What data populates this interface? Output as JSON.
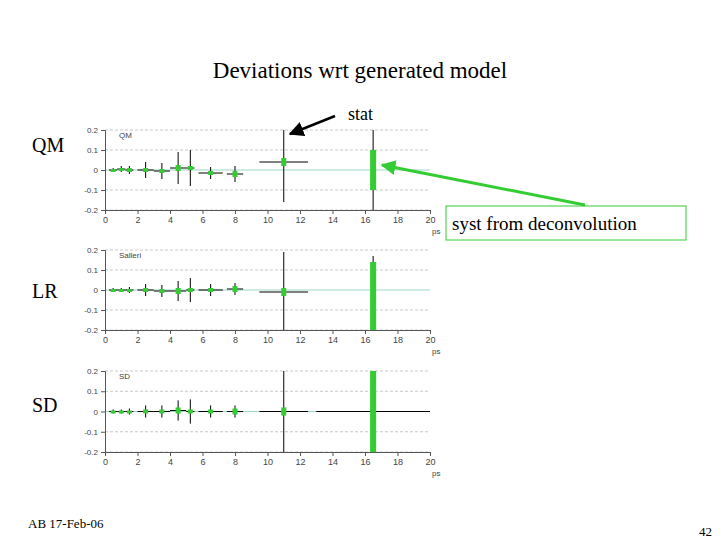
{
  "title": "Deviations wrt generated model",
  "annotations": {
    "stat": "stat",
    "syst": "syst from deconvolution"
  },
  "footer": {
    "left": "AB 17-Feb-06",
    "page": "42"
  },
  "chart_data": [
    {
      "type": "errorbar",
      "label": "QM",
      "title": "QM",
      "x_label": "ps",
      "grid": true,
      "xlim": [
        0,
        20
      ],
      "ylim": [
        -0.2,
        0.2
      ],
      "xticks": [
        0,
        2,
        4,
        6,
        8,
        10,
        12,
        14,
        16,
        18,
        20
      ],
      "yticks": [
        -0.2,
        -0.1,
        0,
        0.1,
        0.2
      ],
      "x": [
        0.5,
        1,
        1.5,
        2.5,
        3.5,
        4.5,
        5.25,
        6.5,
        8,
        11,
        16.5
      ],
      "x_err": [
        0.25,
        0.25,
        0.25,
        0.5,
        0.5,
        0.5,
        0.25,
        0.75,
        0.5,
        1.5,
        0
      ],
      "values": [
        0,
        0.005,
        0,
        0,
        -0.005,
        0.01,
        0.01,
        -0.015,
        -0.02,
        0.04,
        0
      ],
      "y_err_stat": [
        0.01,
        0.015,
        0.02,
        0.04,
        0.04,
        0.08,
        0.09,
        0.03,
        0.04,
        0.2,
        0.2
      ],
      "y_err_syst": [
        0.005,
        0.005,
        0.01,
        0.01,
        0.01,
        0.015,
        0.01,
        0.01,
        0.015,
        0.02,
        0.1
      ]
    },
    {
      "type": "errorbar",
      "label": "LR",
      "title": "Salleri",
      "x_label": "ps",
      "grid": true,
      "xlim": [
        0,
        20
      ],
      "ylim": [
        -0.2,
        0.2
      ],
      "xticks": [
        0,
        2,
        4,
        6,
        8,
        10,
        12,
        14,
        16,
        18,
        20
      ],
      "yticks": [
        -0.2,
        -0.1,
        0,
        0.1,
        0.2
      ],
      "x": [
        0.5,
        1,
        1.5,
        2.5,
        3.5,
        4.5,
        5.25,
        6.5,
        8,
        11,
        16.5
      ],
      "x_err": [
        0.25,
        0.25,
        0.25,
        0.5,
        0.5,
        0.5,
        0.25,
        0.75,
        0.5,
        1.5,
        0
      ],
      "values": [
        0,
        0,
        0,
        0,
        -0.005,
        -0.005,
        0,
        0,
        0.005,
        -0.01,
        -0.03
      ],
      "y_err_stat": [
        0.01,
        0.01,
        0.015,
        0.03,
        0.03,
        0.05,
        0.06,
        0.03,
        0.03,
        0.2,
        0.2
      ],
      "y_err_syst": [
        0.005,
        0.005,
        0.005,
        0.01,
        0.01,
        0.015,
        0.01,
        0.01,
        0.015,
        0.02,
        0.17
      ]
    },
    {
      "type": "errorbar",
      "label": "SD",
      "title": "SD",
      "x_label": "ps",
      "grid": true,
      "xlim": [
        0,
        20
      ],
      "ylim": [
        -0.2,
        0.2
      ],
      "xticks": [
        0,
        2,
        4,
        6,
        8,
        10,
        12,
        14,
        16,
        18,
        20
      ],
      "yticks": [
        -0.2,
        -0.1,
        0,
        0.1,
        0.2
      ],
      "x": [
        0.5,
        1,
        1.5,
        2.5,
        3.5,
        4.5,
        5.25,
        6.5,
        8,
        11,
        16.5
      ],
      "x_err": [
        0.25,
        0.25,
        0.25,
        0.5,
        0.5,
        0.5,
        0.25,
        0.75,
        0.5,
        1.5,
        3.5
      ],
      "values": [
        0,
        0,
        0,
        0,
        0,
        0.005,
        0,
        0,
        0,
        0,
        0
      ],
      "y_err_stat": [
        0.01,
        0.01,
        0.015,
        0.03,
        0.03,
        0.05,
        0.06,
        0.03,
        0.03,
        0.2,
        0.2
      ],
      "y_err_syst": [
        0.005,
        0.005,
        0.005,
        0.01,
        0.01,
        0.015,
        0.01,
        0.01,
        0.015,
        0.02,
        0.2
      ]
    }
  ]
}
